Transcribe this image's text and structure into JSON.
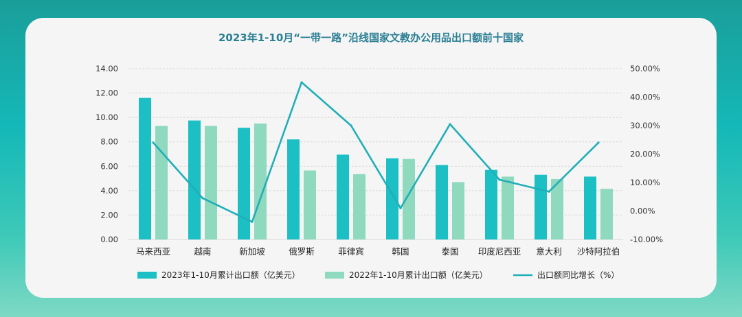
{
  "chart_data": {
    "type": "bar",
    "title": "2023年1-10月“一带一路”沿线国家文教办公用品出口额前十国家",
    "categories": [
      "马来西亚",
      "越南",
      "新加坡",
      "俄罗斯",
      "菲律宾",
      "韩国",
      "泰国",
      "印度尼西亚",
      "意大利",
      "沙特阿拉伯"
    ],
    "series": [
      {
        "name": "2023年1-10月累计出口额（亿美元）",
        "type": "bar",
        "axis": "left",
        "color": "#1cbfc4",
        "values": [
          11.6,
          9.75,
          9.15,
          8.2,
          6.95,
          6.65,
          6.1,
          5.7,
          5.3,
          5.15
        ]
      },
      {
        "name": "2022年1-10月累计出口额（亿美元）",
        "type": "bar",
        "axis": "left",
        "color": "#8fd9bf",
        "values": [
          9.3,
          9.3,
          9.5,
          5.65,
          5.35,
          6.6,
          4.7,
          5.15,
          4.95,
          4.15
        ]
      },
      {
        "name": "出口额同比增长（%）",
        "type": "line",
        "axis": "right",
        "color": "#21aeb8",
        "values": [
          24.0,
          4.5,
          -3.8,
          45.2,
          30.0,
          1.0,
          30.5,
          11.0,
          6.8,
          24.0
        ]
      }
    ],
    "y_left": {
      "ylim": [
        0,
        14
      ],
      "ticks": [
        "0.00",
        "2.00",
        "4.00",
        "6.00",
        "8.00",
        "10.00",
        "12.00",
        "14.00"
      ]
    },
    "y_right": {
      "ylim": [
        -10,
        50
      ],
      "ticks": [
        "-10.00%",
        "0.00%",
        "10.00%",
        "20.00%",
        "30.00%",
        "40.00%",
        "50.00%"
      ]
    },
    "grid": true,
    "legend_position": "bottom"
  }
}
